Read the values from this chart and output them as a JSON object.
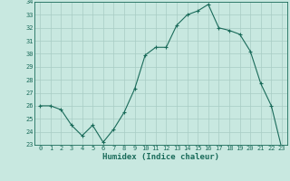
{
  "x": [
    0,
    1,
    2,
    3,
    4,
    5,
    6,
    7,
    8,
    9,
    10,
    11,
    12,
    13,
    14,
    15,
    16,
    17,
    18,
    19,
    20,
    21,
    22,
    23
  ],
  "y": [
    26.0,
    26.0,
    25.7,
    24.5,
    23.7,
    24.5,
    23.2,
    24.2,
    25.5,
    27.3,
    29.9,
    30.5,
    30.5,
    32.2,
    33.0,
    33.3,
    33.8,
    32.0,
    31.8,
    31.5,
    30.2,
    27.7,
    26.0,
    22.7
  ],
  "line_color": "#1a6b5a",
  "marker": "+",
  "marker_size": 3,
  "bg_color": "#c8e8e0",
  "grid_color": "#a8ccc4",
  "xlabel": "Humidex (Indice chaleur)",
  "ylim": [
    23,
    34
  ],
  "xlim_min": -0.5,
  "xlim_max": 23.5,
  "yticks": [
    23,
    24,
    25,
    26,
    27,
    28,
    29,
    30,
    31,
    32,
    33,
    34
  ],
  "xticks": [
    0,
    1,
    2,
    3,
    4,
    5,
    6,
    7,
    8,
    9,
    10,
    11,
    12,
    13,
    14,
    15,
    16,
    17,
    18,
    19,
    20,
    21,
    22,
    23
  ],
  "tick_fontsize": 5,
  "xlabel_fontsize": 6.5
}
